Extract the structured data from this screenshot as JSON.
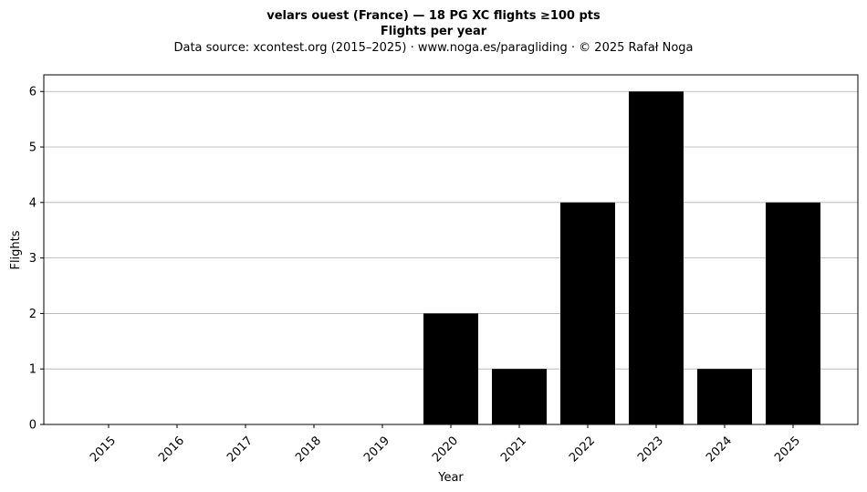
{
  "chart_data": {
    "type": "bar",
    "title": "velars ouest (France)  —  18 PG XC flights ≥100 pts",
    "subtitle": "Flights per year",
    "source": "Data source: xcontest.org (2015–2025)  ·  www.noga.es/paragliding  ·  © 2025 Rafał Noga",
    "xlabel": "Year",
    "ylabel": "Flights",
    "categories": [
      "2015",
      "2016",
      "2017",
      "2018",
      "2019",
      "2020",
      "2021",
      "2022",
      "2023",
      "2024",
      "2025"
    ],
    "values": [
      0,
      0,
      0,
      0,
      0,
      2,
      1,
      4,
      6,
      1,
      4
    ],
    "ylim": [
      0,
      6.3
    ],
    "yticks": [
      "0",
      "1",
      "2",
      "3",
      "4",
      "5",
      "6"
    ],
    "grid": "y-axis horizontal lines",
    "bar_color": "#000000",
    "grid_color": "#b0b0b0"
  }
}
